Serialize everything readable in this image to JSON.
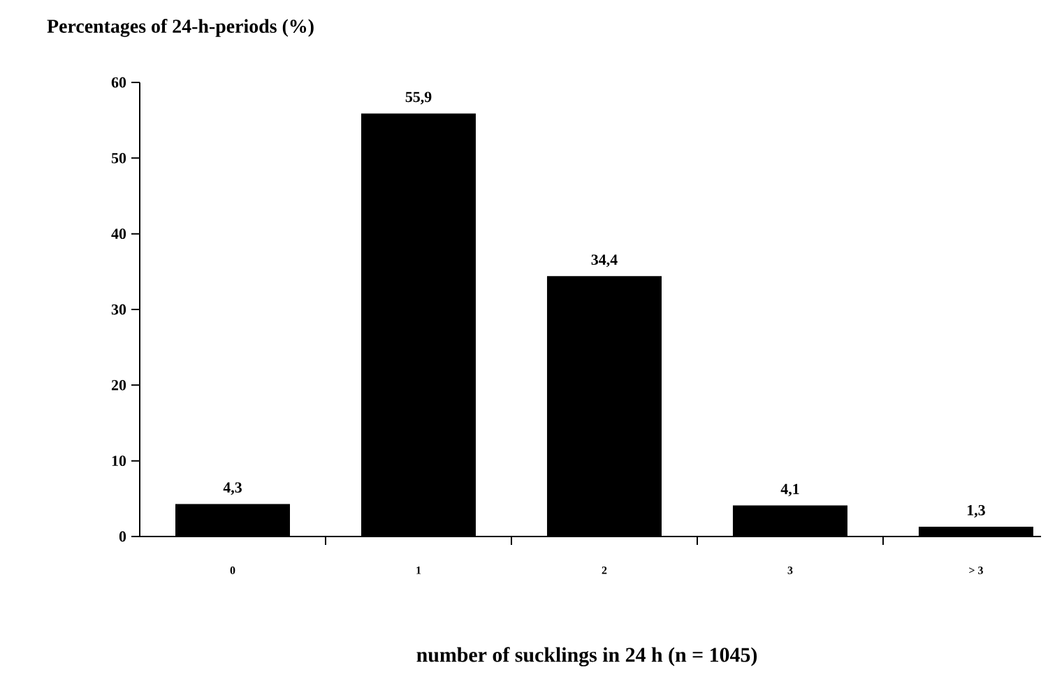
{
  "chart_data": {
    "type": "bar",
    "ylabel": "Percentages of 24-h-periods (%)",
    "xlabel": "number of sucklings in 24 h (n = 1045)",
    "categories": [
      "0",
      "1",
      "2",
      "3",
      "> 3"
    ],
    "values": [
      4.3,
      55.9,
      34.4,
      4.1,
      1.3
    ],
    "value_labels": [
      "4,3",
      "55,9",
      "34,4",
      "4,1",
      "1,3"
    ],
    "color": "#000000",
    "ylim": [
      0,
      60
    ],
    "yticks": [
      0,
      10,
      20,
      30,
      40,
      50,
      60
    ],
    "grid": false
  }
}
